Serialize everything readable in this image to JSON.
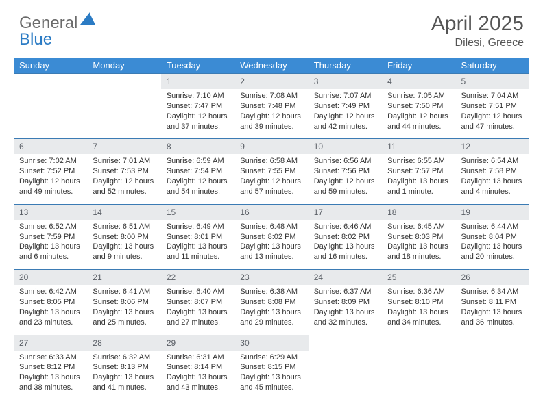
{
  "logo": {
    "part1": "General",
    "part2": "Blue"
  },
  "title": "April 2025",
  "location": "Dilesi, Greece",
  "day_headers": [
    "Sunday",
    "Monday",
    "Tuesday",
    "Wednesday",
    "Thursday",
    "Friday",
    "Saturday"
  ],
  "colors": {
    "header_bg": "#3b8bd4",
    "header_text": "#ffffff",
    "daynum_bg": "#e8eaec",
    "daynum_text": "#5a5f66",
    "border": "#3b7bb4",
    "text": "#333333",
    "title_text": "#555555",
    "logo_gray": "#6b6b6b",
    "logo_blue": "#2b7bc4"
  },
  "fonts": {
    "title_size": 30,
    "location_size": 16,
    "header_size": 13,
    "daynum_size": 12,
    "cell_size": 11
  },
  "weeks": [
    [
      null,
      null,
      {
        "num": "1",
        "sunrise": "Sunrise: 7:10 AM",
        "sunset": "Sunset: 7:47 PM",
        "daylight": "Daylight: 12 hours and 37 minutes."
      },
      {
        "num": "2",
        "sunrise": "Sunrise: 7:08 AM",
        "sunset": "Sunset: 7:48 PM",
        "daylight": "Daylight: 12 hours and 39 minutes."
      },
      {
        "num": "3",
        "sunrise": "Sunrise: 7:07 AM",
        "sunset": "Sunset: 7:49 PM",
        "daylight": "Daylight: 12 hours and 42 minutes."
      },
      {
        "num": "4",
        "sunrise": "Sunrise: 7:05 AM",
        "sunset": "Sunset: 7:50 PM",
        "daylight": "Daylight: 12 hours and 44 minutes."
      },
      {
        "num": "5",
        "sunrise": "Sunrise: 7:04 AM",
        "sunset": "Sunset: 7:51 PM",
        "daylight": "Daylight: 12 hours and 47 minutes."
      }
    ],
    [
      {
        "num": "6",
        "sunrise": "Sunrise: 7:02 AM",
        "sunset": "Sunset: 7:52 PM",
        "daylight": "Daylight: 12 hours and 49 minutes."
      },
      {
        "num": "7",
        "sunrise": "Sunrise: 7:01 AM",
        "sunset": "Sunset: 7:53 PM",
        "daylight": "Daylight: 12 hours and 52 minutes."
      },
      {
        "num": "8",
        "sunrise": "Sunrise: 6:59 AM",
        "sunset": "Sunset: 7:54 PM",
        "daylight": "Daylight: 12 hours and 54 minutes."
      },
      {
        "num": "9",
        "sunrise": "Sunrise: 6:58 AM",
        "sunset": "Sunset: 7:55 PM",
        "daylight": "Daylight: 12 hours and 57 minutes."
      },
      {
        "num": "10",
        "sunrise": "Sunrise: 6:56 AM",
        "sunset": "Sunset: 7:56 PM",
        "daylight": "Daylight: 12 hours and 59 minutes."
      },
      {
        "num": "11",
        "sunrise": "Sunrise: 6:55 AM",
        "sunset": "Sunset: 7:57 PM",
        "daylight": "Daylight: 13 hours and 1 minute."
      },
      {
        "num": "12",
        "sunrise": "Sunrise: 6:54 AM",
        "sunset": "Sunset: 7:58 PM",
        "daylight": "Daylight: 13 hours and 4 minutes."
      }
    ],
    [
      {
        "num": "13",
        "sunrise": "Sunrise: 6:52 AM",
        "sunset": "Sunset: 7:59 PM",
        "daylight": "Daylight: 13 hours and 6 minutes."
      },
      {
        "num": "14",
        "sunrise": "Sunrise: 6:51 AM",
        "sunset": "Sunset: 8:00 PM",
        "daylight": "Daylight: 13 hours and 9 minutes."
      },
      {
        "num": "15",
        "sunrise": "Sunrise: 6:49 AM",
        "sunset": "Sunset: 8:01 PM",
        "daylight": "Daylight: 13 hours and 11 minutes."
      },
      {
        "num": "16",
        "sunrise": "Sunrise: 6:48 AM",
        "sunset": "Sunset: 8:02 PM",
        "daylight": "Daylight: 13 hours and 13 minutes."
      },
      {
        "num": "17",
        "sunrise": "Sunrise: 6:46 AM",
        "sunset": "Sunset: 8:02 PM",
        "daylight": "Daylight: 13 hours and 16 minutes."
      },
      {
        "num": "18",
        "sunrise": "Sunrise: 6:45 AM",
        "sunset": "Sunset: 8:03 PM",
        "daylight": "Daylight: 13 hours and 18 minutes."
      },
      {
        "num": "19",
        "sunrise": "Sunrise: 6:44 AM",
        "sunset": "Sunset: 8:04 PM",
        "daylight": "Daylight: 13 hours and 20 minutes."
      }
    ],
    [
      {
        "num": "20",
        "sunrise": "Sunrise: 6:42 AM",
        "sunset": "Sunset: 8:05 PM",
        "daylight": "Daylight: 13 hours and 23 minutes."
      },
      {
        "num": "21",
        "sunrise": "Sunrise: 6:41 AM",
        "sunset": "Sunset: 8:06 PM",
        "daylight": "Daylight: 13 hours and 25 minutes."
      },
      {
        "num": "22",
        "sunrise": "Sunrise: 6:40 AM",
        "sunset": "Sunset: 8:07 PM",
        "daylight": "Daylight: 13 hours and 27 minutes."
      },
      {
        "num": "23",
        "sunrise": "Sunrise: 6:38 AM",
        "sunset": "Sunset: 8:08 PM",
        "daylight": "Daylight: 13 hours and 29 minutes."
      },
      {
        "num": "24",
        "sunrise": "Sunrise: 6:37 AM",
        "sunset": "Sunset: 8:09 PM",
        "daylight": "Daylight: 13 hours and 32 minutes."
      },
      {
        "num": "25",
        "sunrise": "Sunrise: 6:36 AM",
        "sunset": "Sunset: 8:10 PM",
        "daylight": "Daylight: 13 hours and 34 minutes."
      },
      {
        "num": "26",
        "sunrise": "Sunrise: 6:34 AM",
        "sunset": "Sunset: 8:11 PM",
        "daylight": "Daylight: 13 hours and 36 minutes."
      }
    ],
    [
      {
        "num": "27",
        "sunrise": "Sunrise: 6:33 AM",
        "sunset": "Sunset: 8:12 PM",
        "daylight": "Daylight: 13 hours and 38 minutes."
      },
      {
        "num": "28",
        "sunrise": "Sunrise: 6:32 AM",
        "sunset": "Sunset: 8:13 PM",
        "daylight": "Daylight: 13 hours and 41 minutes."
      },
      {
        "num": "29",
        "sunrise": "Sunrise: 6:31 AM",
        "sunset": "Sunset: 8:14 PM",
        "daylight": "Daylight: 13 hours and 43 minutes."
      },
      {
        "num": "30",
        "sunrise": "Sunrise: 6:29 AM",
        "sunset": "Sunset: 8:15 PM",
        "daylight": "Daylight: 13 hours and 45 minutes."
      },
      null,
      null,
      null
    ]
  ]
}
